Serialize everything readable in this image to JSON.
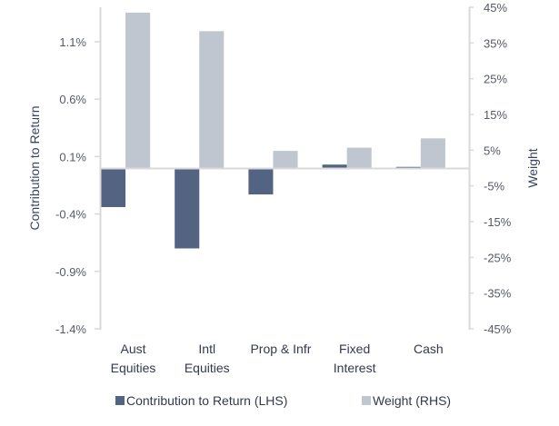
{
  "chart_data": {
    "type": "bar",
    "categories": [
      [
        "Aust",
        "Equities"
      ],
      [
        "Intl",
        "Equities"
      ],
      [
        "Prop & Infr"
      ],
      [
        "Fixed",
        "Interest"
      ],
      [
        "Cash"
      ]
    ],
    "series": [
      {
        "name": "Contribution to Return (LHS)",
        "axis": "left",
        "color": "#536482",
        "values": [
          -0.34,
          -0.7,
          -0.23,
          0.03,
          0.01
        ]
      },
      {
        "name": "Weight (RHS)",
        "axis": "right",
        "color": "#bfc6cf",
        "values": [
          43.5,
          38.3,
          4.8,
          5.7,
          8.3
        ]
      }
    ],
    "left_axis": {
      "label": "Contribution to Return",
      "ylim": [
        -1.4,
        1.4
      ],
      "ticks": [
        "1.1%",
        "0.6%",
        "0.1%",
        "-0.4%",
        "-0.9%",
        "-1.4%"
      ],
      "tick_values": [
        1.1,
        0.6,
        0.1,
        -0.4,
        -0.9,
        -1.4
      ]
    },
    "right_axis": {
      "label": "Weight",
      "ylim": [
        -45,
        45
      ],
      "ticks": [
        "45%",
        "35%",
        "25%",
        "15%",
        "5%",
        "-5%",
        "-15%",
        "-25%",
        "-35%",
        "-45%"
      ],
      "tick_values": [
        45,
        35,
        25,
        15,
        5,
        -5,
        -15,
        -25,
        -35,
        -45
      ]
    },
    "legend_position": "bottom",
    "grid": false,
    "axis_color": "#d9d9d9"
  }
}
